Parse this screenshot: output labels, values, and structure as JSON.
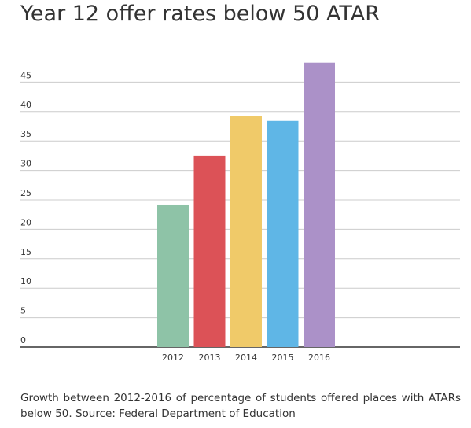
{
  "title": "Year 12 offer rates below 50 ATAR",
  "caption": "Growth between 2012-2016 of percentage of students offered places with ATARs below 50. Source: Federal Department of Education",
  "chart_data": {
    "type": "bar",
    "categories": [
      "2012",
      "2013",
      "2014",
      "2015",
      "2016"
    ],
    "values": [
      24.2,
      32.5,
      39.3,
      38.4,
      48.3
    ],
    "colors": [
      "#8ec3a7",
      "#dc5257",
      "#f0ca69",
      "#5fb6e6",
      "#ab91c8"
    ],
    "yticks": [
      0,
      5,
      10,
      15,
      20,
      25,
      30,
      35,
      40,
      45
    ],
    "ylim": [
      0,
      48.3
    ],
    "grid": true,
    "title": "",
    "xlabel": "",
    "ylabel": ""
  }
}
